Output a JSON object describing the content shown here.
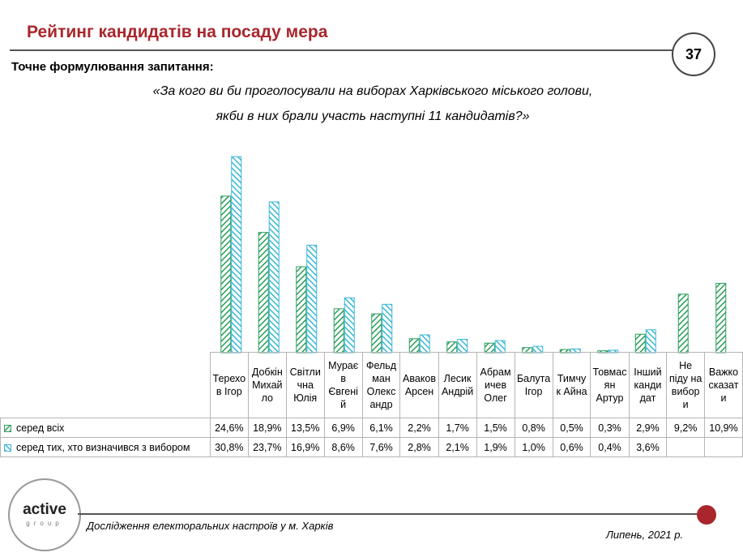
{
  "slide": {
    "title": "Рейтинг кандидатів на посаду мера",
    "page_number": "37",
    "question_label": "Точне формулювання запитання:",
    "question_line1": "«За кого ви би проголосували на виборах Харківського міського голови,",
    "question_line2": "якби в них брали участь наступні 11 кандидатів?»",
    "footer_left": "Дослідження електоральних настроїв у м. Харків",
    "footer_right": "Липень, 2021 р.",
    "logo_main": "active",
    "logo_sub": "group"
  },
  "colors": {
    "accent": "#a8262c",
    "series1": "#2a9d5c",
    "series2": "#39b6d9"
  },
  "chart_data": {
    "type": "bar",
    "categories": [
      "Терехов Ігор",
      "Добкін Михайло",
      "Світлична Юлія",
      "Мураєв Євгеній",
      "Фельдман Олександр",
      "Аваков Арсен",
      "Лесик Андрій",
      "Абрамичев Олег",
      "Балута Ігор",
      "Тимчук Айна",
      "Товмасян Артур",
      "Інший кандидат",
      "Не піду на вибори",
      "Важко сказати"
    ],
    "category_label_lines": [
      [
        "Терехо",
        "в Ігор"
      ],
      [
        "Добкін",
        "Михай",
        "ло"
      ],
      [
        "Світли",
        "чна",
        "Юлія"
      ],
      [
        "Мурає",
        "в",
        "Євгені",
        "й"
      ],
      [
        "Фельд",
        "ман",
        "Олекс",
        "андр"
      ],
      [
        "Аваков",
        "Арсен"
      ],
      [
        "Лесик",
        "Андрій"
      ],
      [
        "Абрам",
        "ичев",
        "Олег"
      ],
      [
        "Балута",
        "Ігор"
      ],
      [
        "Тимчу",
        "к Айна"
      ],
      [
        "Товмас",
        "ян",
        "Артур"
      ],
      [
        "Інший",
        "канди",
        "дат"
      ],
      [
        "Не",
        "піду на",
        "вибор",
        "и"
      ],
      [
        "Важко",
        "сказат",
        "и"
      ]
    ],
    "series": [
      {
        "name": "серед всіх",
        "values": [
          24.6,
          18.9,
          13.5,
          6.9,
          6.1,
          2.2,
          1.7,
          1.5,
          0.8,
          0.5,
          0.3,
          2.9,
          9.2,
          10.9
        ],
        "labels": [
          "24,6%",
          "18,9%",
          "13,5%",
          "6,9%",
          "6,1%",
          "2,2%",
          "1,7%",
          "1,5%",
          "0,8%",
          "0,5%",
          "0,3%",
          "2,9%",
          "9,2%",
          "10,9%"
        ]
      },
      {
        "name": "серед тих, хто визначився з вибором",
        "values": [
          30.8,
          23.7,
          16.9,
          8.6,
          7.6,
          2.8,
          2.1,
          1.9,
          1.0,
          0.6,
          0.4,
          3.6,
          null,
          null
        ],
        "labels": [
          "30,8%",
          "23,7%",
          "16,9%",
          "8,6%",
          "7,6%",
          "2,8%",
          "2,1%",
          "1,9%",
          "1,0%",
          "0,6%",
          "0,4%",
          "3,6%",
          "",
          ""
        ]
      }
    ],
    "ylim": [
      0,
      32
    ]
  }
}
